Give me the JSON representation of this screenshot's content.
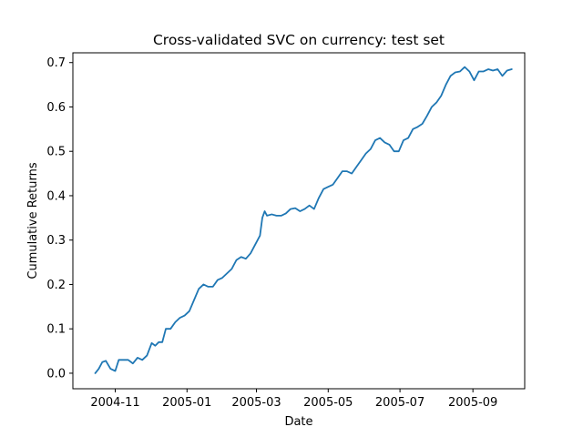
{
  "chart_data": {
    "type": "line",
    "title": "Cross-validated SVC on currency: test set",
    "xlabel": "Date",
    "ylabel": "Cumulative Returns",
    "xlim": [
      "2004-09-26",
      "2005-10-15"
    ],
    "ylim": [
      -0.035,
      0.722
    ],
    "x_ticks": [
      "2004-11",
      "2005-01",
      "2005-03",
      "2005-05",
      "2005-07",
      "2005-09"
    ],
    "y_ticks": [
      0.0,
      0.1,
      0.2,
      0.3,
      0.4,
      0.5,
      0.6,
      0.7
    ],
    "y_tick_labels": [
      "0.0",
      "0.1",
      "0.2",
      "0.3",
      "0.4",
      "0.5",
      "0.6",
      "0.7"
    ],
    "grid": false,
    "line_color": "#1f77b4",
    "series": [
      {
        "x": [
          "2004-10-15",
          "2004-10-18",
          "2004-10-21",
          "2004-10-24",
          "2004-10-28",
          "2004-11-01",
          "2004-11-04",
          "2004-11-08",
          "2004-11-12",
          "2004-11-16",
          "2004-11-20",
          "2004-11-24",
          "2004-11-28",
          "2004-12-02",
          "2004-12-05",
          "2004-12-08",
          "2004-12-11",
          "2004-12-14",
          "2004-12-18",
          "2004-12-22",
          "2004-12-26",
          "2004-12-30",
          "2005-01-03",
          "2005-01-07",
          "2005-01-11",
          "2005-01-15",
          "2005-01-19",
          "2005-01-23",
          "2005-01-27",
          "2005-01-31",
          "2005-02-04",
          "2005-02-08",
          "2005-02-12",
          "2005-02-16",
          "2005-02-20",
          "2005-02-24",
          "2005-02-28",
          "2005-03-04",
          "2005-03-06",
          "2005-03-08",
          "2005-03-10",
          "2005-03-14",
          "2005-03-18",
          "2005-03-22",
          "2005-03-26",
          "2005-03-30",
          "2005-04-03",
          "2005-04-07",
          "2005-04-11",
          "2005-04-15",
          "2005-04-19",
          "2005-04-23",
          "2005-04-27",
          "2005-05-01",
          "2005-05-05",
          "2005-05-09",
          "2005-05-13",
          "2005-05-17",
          "2005-05-21",
          "2005-05-25",
          "2005-05-29",
          "2005-06-02",
          "2005-06-06",
          "2005-06-10",
          "2005-06-14",
          "2005-06-18",
          "2005-06-22",
          "2005-06-26",
          "2005-06-30",
          "2005-07-04",
          "2005-07-08",
          "2005-07-12",
          "2005-07-16",
          "2005-07-20",
          "2005-07-24",
          "2005-07-28",
          "2005-08-01",
          "2005-08-05",
          "2005-08-09",
          "2005-08-13",
          "2005-08-17",
          "2005-08-21",
          "2005-08-25",
          "2005-08-29",
          "2005-09-02",
          "2005-09-06",
          "2005-09-10",
          "2005-09-14",
          "2005-09-18",
          "2005-09-22",
          "2005-09-26",
          "2005-09-30",
          "2005-10-04"
        ],
        "values": [
          0.0,
          0.01,
          0.025,
          0.028,
          0.01,
          0.005,
          0.03,
          0.03,
          0.03,
          0.022,
          0.035,
          0.03,
          0.04,
          0.068,
          0.062,
          0.07,
          0.07,
          0.1,
          0.1,
          0.115,
          0.125,
          0.13,
          0.14,
          0.165,
          0.19,
          0.2,
          0.195,
          0.195,
          0.21,
          0.215,
          0.225,
          0.235,
          0.255,
          0.262,
          0.258,
          0.27,
          0.29,
          0.31,
          0.35,
          0.365,
          0.355,
          0.358,
          0.355,
          0.355,
          0.36,
          0.37,
          0.372,
          0.365,
          0.37,
          0.378,
          0.37,
          0.395,
          0.415,
          0.42,
          0.425,
          0.44,
          0.455,
          0.455,
          0.45,
          0.465,
          0.48,
          0.495,
          0.505,
          0.525,
          0.53,
          0.52,
          0.515,
          0.5,
          0.5,
          0.525,
          0.53,
          0.55,
          0.555,
          0.562,
          0.58,
          0.6,
          0.61,
          0.625,
          0.65,
          0.67,
          0.678,
          0.68,
          0.69,
          0.68,
          0.66,
          0.68,
          0.68,
          0.685,
          0.682,
          0.685,
          0.67,
          0.682,
          0.685
        ]
      }
    ]
  }
}
